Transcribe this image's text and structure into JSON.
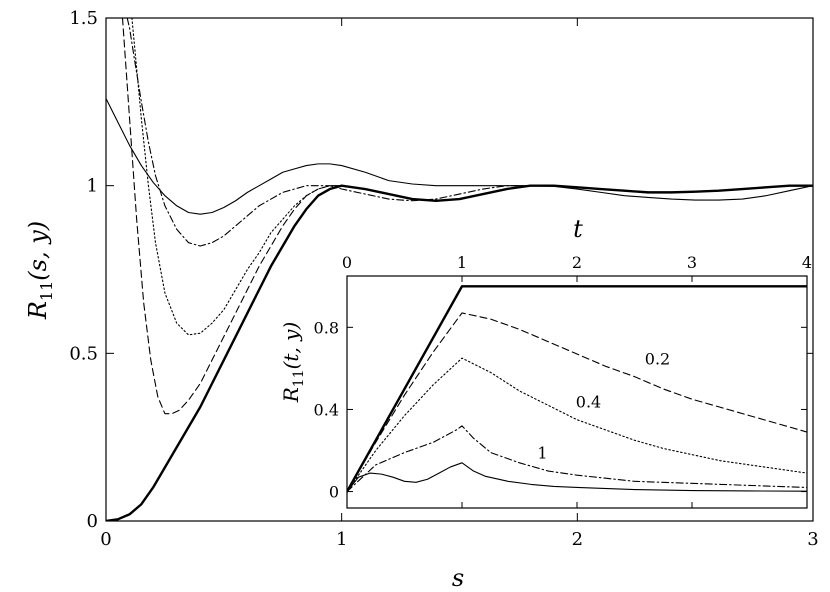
{
  "chart_data": [
    {
      "type": "line",
      "xlabel": "s",
      "ylabel": {
        "main": "R",
        "sub": "11",
        "args": "(s, y)"
      },
      "xlim": [
        0,
        3
      ],
      "ylim": [
        0,
        1.5
      ],
      "xticks": [
        0,
        1,
        2,
        3
      ],
      "xtick_labels": [
        "0",
        "1",
        "2",
        "3"
      ],
      "yticks": [
        0,
        0.5,
        1,
        1.5
      ],
      "ytick_labels": [
        "0",
        "0.5",
        "1",
        "1.5"
      ],
      "series": [
        {
          "style": "thick-solid",
          "x": [
            0,
            0.05,
            0.1,
            0.15,
            0.2,
            0.25,
            0.3,
            0.35,
            0.4,
            0.45,
            0.5,
            0.55,
            0.6,
            0.65,
            0.7,
            0.75,
            0.8,
            0.85,
            0.9,
            0.95,
            1.0,
            1.1,
            1.2,
            1.3,
            1.4,
            1.5,
            1.6,
            1.7,
            1.8,
            1.9,
            2.0,
            2.1,
            2.2,
            2.3,
            2.4,
            2.5,
            2.6,
            2.7,
            2.8,
            2.9,
            3.0
          ],
          "y": [
            0,
            0.005,
            0.02,
            0.05,
            0.1,
            0.16,
            0.22,
            0.28,
            0.34,
            0.41,
            0.48,
            0.55,
            0.62,
            0.69,
            0.76,
            0.82,
            0.88,
            0.93,
            0.97,
            0.99,
            1.0,
            0.99,
            0.975,
            0.96,
            0.955,
            0.96,
            0.975,
            0.99,
            1.0,
            1.0,
            0.995,
            0.99,
            0.985,
            0.98,
            0.98,
            0.982,
            0.985,
            0.99,
            0.995,
            1.0,
            1.0
          ]
        },
        {
          "style": "dashed",
          "x": [
            0.07,
            0.1,
            0.13,
            0.16,
            0.19,
            0.22,
            0.25,
            0.28,
            0.31,
            0.35,
            0.4,
            0.45,
            0.5,
            0.55,
            0.6,
            0.65,
            0.7,
            0.75,
            0.8,
            0.85,
            0.9,
            0.95,
            1.0
          ],
          "y": [
            1.5,
            1.2,
            0.9,
            0.65,
            0.48,
            0.37,
            0.32,
            0.32,
            0.33,
            0.36,
            0.41,
            0.48,
            0.55,
            0.62,
            0.69,
            0.76,
            0.82,
            0.88,
            0.93,
            0.97,
            0.99,
            1.0,
            1.0
          ]
        },
        {
          "style": "dotted",
          "x": [
            0.11,
            0.13,
            0.15,
            0.18,
            0.21,
            0.25,
            0.3,
            0.35,
            0.4,
            0.45,
            0.5,
            0.55,
            0.6,
            0.65,
            0.7,
            0.75,
            0.8,
            0.85,
            0.9,
            0.95,
            1.0
          ],
          "y": [
            1.5,
            1.35,
            1.2,
            1.0,
            0.83,
            0.68,
            0.59,
            0.555,
            0.56,
            0.59,
            0.63,
            0.69,
            0.75,
            0.8,
            0.86,
            0.9,
            0.94,
            0.97,
            0.99,
            1.0,
            1.0
          ]
        },
        {
          "style": "dash-dot",
          "x": [
            0.09,
            0.1,
            0.12,
            0.15,
            0.18,
            0.21,
            0.25,
            0.3,
            0.35,
            0.4,
            0.45,
            0.5,
            0.55,
            0.6,
            0.65,
            0.7,
            0.75,
            0.8,
            0.85,
            0.9,
            0.95,
            1.0,
            1.1,
            1.2,
            1.3,
            1.4,
            1.5,
            1.6,
            1.7,
            1.8,
            1.9,
            2.0
          ],
          "y": [
            1.5,
            1.47,
            1.38,
            1.25,
            1.13,
            1.03,
            0.94,
            0.87,
            0.83,
            0.82,
            0.83,
            0.85,
            0.88,
            0.91,
            0.94,
            0.96,
            0.98,
            0.99,
            1.0,
            1.0,
            1.0,
            0.99,
            0.975,
            0.96,
            0.955,
            0.96,
            0.975,
            0.99,
            1.0,
            1.0,
            1.0,
            0.995
          ]
        },
        {
          "style": "thin-solid",
          "x": [
            0,
            0.05,
            0.1,
            0.15,
            0.2,
            0.25,
            0.3,
            0.35,
            0.4,
            0.45,
            0.5,
            0.55,
            0.6,
            0.65,
            0.7,
            0.75,
            0.8,
            0.85,
            0.9,
            0.95,
            1.0,
            1.1,
            1.2,
            1.3,
            1.4,
            1.5,
            1.6,
            1.7,
            1.8,
            1.9,
            2.0,
            2.1,
            2.2,
            2.3,
            2.4,
            2.5,
            2.6,
            2.7,
            2.8,
            2.9,
            3.0
          ],
          "y": [
            1.26,
            1.19,
            1.12,
            1.06,
            1.01,
            0.97,
            0.94,
            0.92,
            0.915,
            0.92,
            0.935,
            0.955,
            0.98,
            1.0,
            1.02,
            1.04,
            1.05,
            1.06,
            1.065,
            1.065,
            1.06,
            1.04,
            1.015,
            1.005,
            1.0,
            1.0,
            1.0,
            1.0,
            1.0,
            0.998,
            0.99,
            0.98,
            0.97,
            0.965,
            0.96,
            0.957,
            0.957,
            0.96,
            0.97,
            0.985,
            1.0
          ]
        }
      ]
    },
    {
      "type": "line",
      "inset": true,
      "xlabel": "t",
      "ylabel": {
        "main": "R",
        "sub": "11",
        "args": "(t, y)"
      },
      "xlim": [
        0,
        4
      ],
      "ylim": [
        -0.08,
        1.05
      ],
      "xticks": [
        0,
        1,
        2,
        3,
        4
      ],
      "xtick_labels": [
        "0",
        "1",
        "2",
        "3",
        "4"
      ],
      "yticks": [
        0,
        0.4,
        0.8
      ],
      "ytick_labels": [
        "0",
        "0.4",
        "0.8"
      ],
      "annotations": [
        {
          "text": "0.2",
          "x": 2.7,
          "y": 0.62
        },
        {
          "text": "0.4",
          "x": 2.1,
          "y": 0.41
        },
        {
          "text": "1",
          "x": 1.7,
          "y": 0.16
        }
      ],
      "series": [
        {
          "style": "thick-solid",
          "x": [
            0,
            1,
            4
          ],
          "y": [
            0,
            1,
            1
          ]
        },
        {
          "style": "dashed",
          "x": [
            0,
            0.25,
            0.5,
            0.75,
            1.0,
            1.25,
            1.5,
            1.75,
            2.0,
            2.25,
            2.5,
            2.75,
            3.0,
            3.25,
            3.5,
            3.75,
            4.0
          ],
          "y": [
            0,
            0.24,
            0.47,
            0.68,
            0.87,
            0.84,
            0.79,
            0.73,
            0.67,
            0.61,
            0.56,
            0.5,
            0.45,
            0.41,
            0.37,
            0.33,
            0.29
          ]
        },
        {
          "style": "dotted",
          "x": [
            0,
            0.25,
            0.5,
            0.75,
            1.0,
            1.25,
            1.5,
            1.75,
            2.0,
            2.25,
            2.5,
            2.75,
            3.0,
            3.25,
            3.5,
            3.75,
            4.0
          ],
          "y": [
            0,
            0.2,
            0.37,
            0.52,
            0.65,
            0.58,
            0.49,
            0.42,
            0.35,
            0.3,
            0.25,
            0.21,
            0.18,
            0.15,
            0.13,
            0.11,
            0.09
          ]
        },
        {
          "style": "dash-dot",
          "x": [
            0,
            0.25,
            0.5,
            0.75,
            0.95,
            1.0,
            1.1,
            1.25,
            1.5,
            1.75,
            2.0,
            2.25,
            2.5,
            2.75,
            3.0,
            3.25,
            3.5,
            3.75,
            4.0
          ],
          "y": [
            0,
            0.13,
            0.19,
            0.24,
            0.3,
            0.32,
            0.26,
            0.19,
            0.14,
            0.1,
            0.08,
            0.065,
            0.05,
            0.045,
            0.04,
            0.035,
            0.03,
            0.025,
            0.02
          ]
        },
        {
          "style": "thin-solid",
          "x": [
            0,
            0.1,
            0.2,
            0.3,
            0.4,
            0.5,
            0.6,
            0.7,
            0.8,
            0.9,
            1.0,
            1.1,
            1.2,
            1.4,
            1.6,
            1.8,
            2.0,
            2.5,
            3.0,
            3.5,
            4.0
          ],
          "y": [
            0,
            0.07,
            0.09,
            0.085,
            0.07,
            0.05,
            0.045,
            0.06,
            0.09,
            0.12,
            0.14,
            0.1,
            0.075,
            0.05,
            0.035,
            0.025,
            0.02,
            0.01,
            0.005,
            0.003,
            0.002
          ]
        }
      ]
    }
  ]
}
